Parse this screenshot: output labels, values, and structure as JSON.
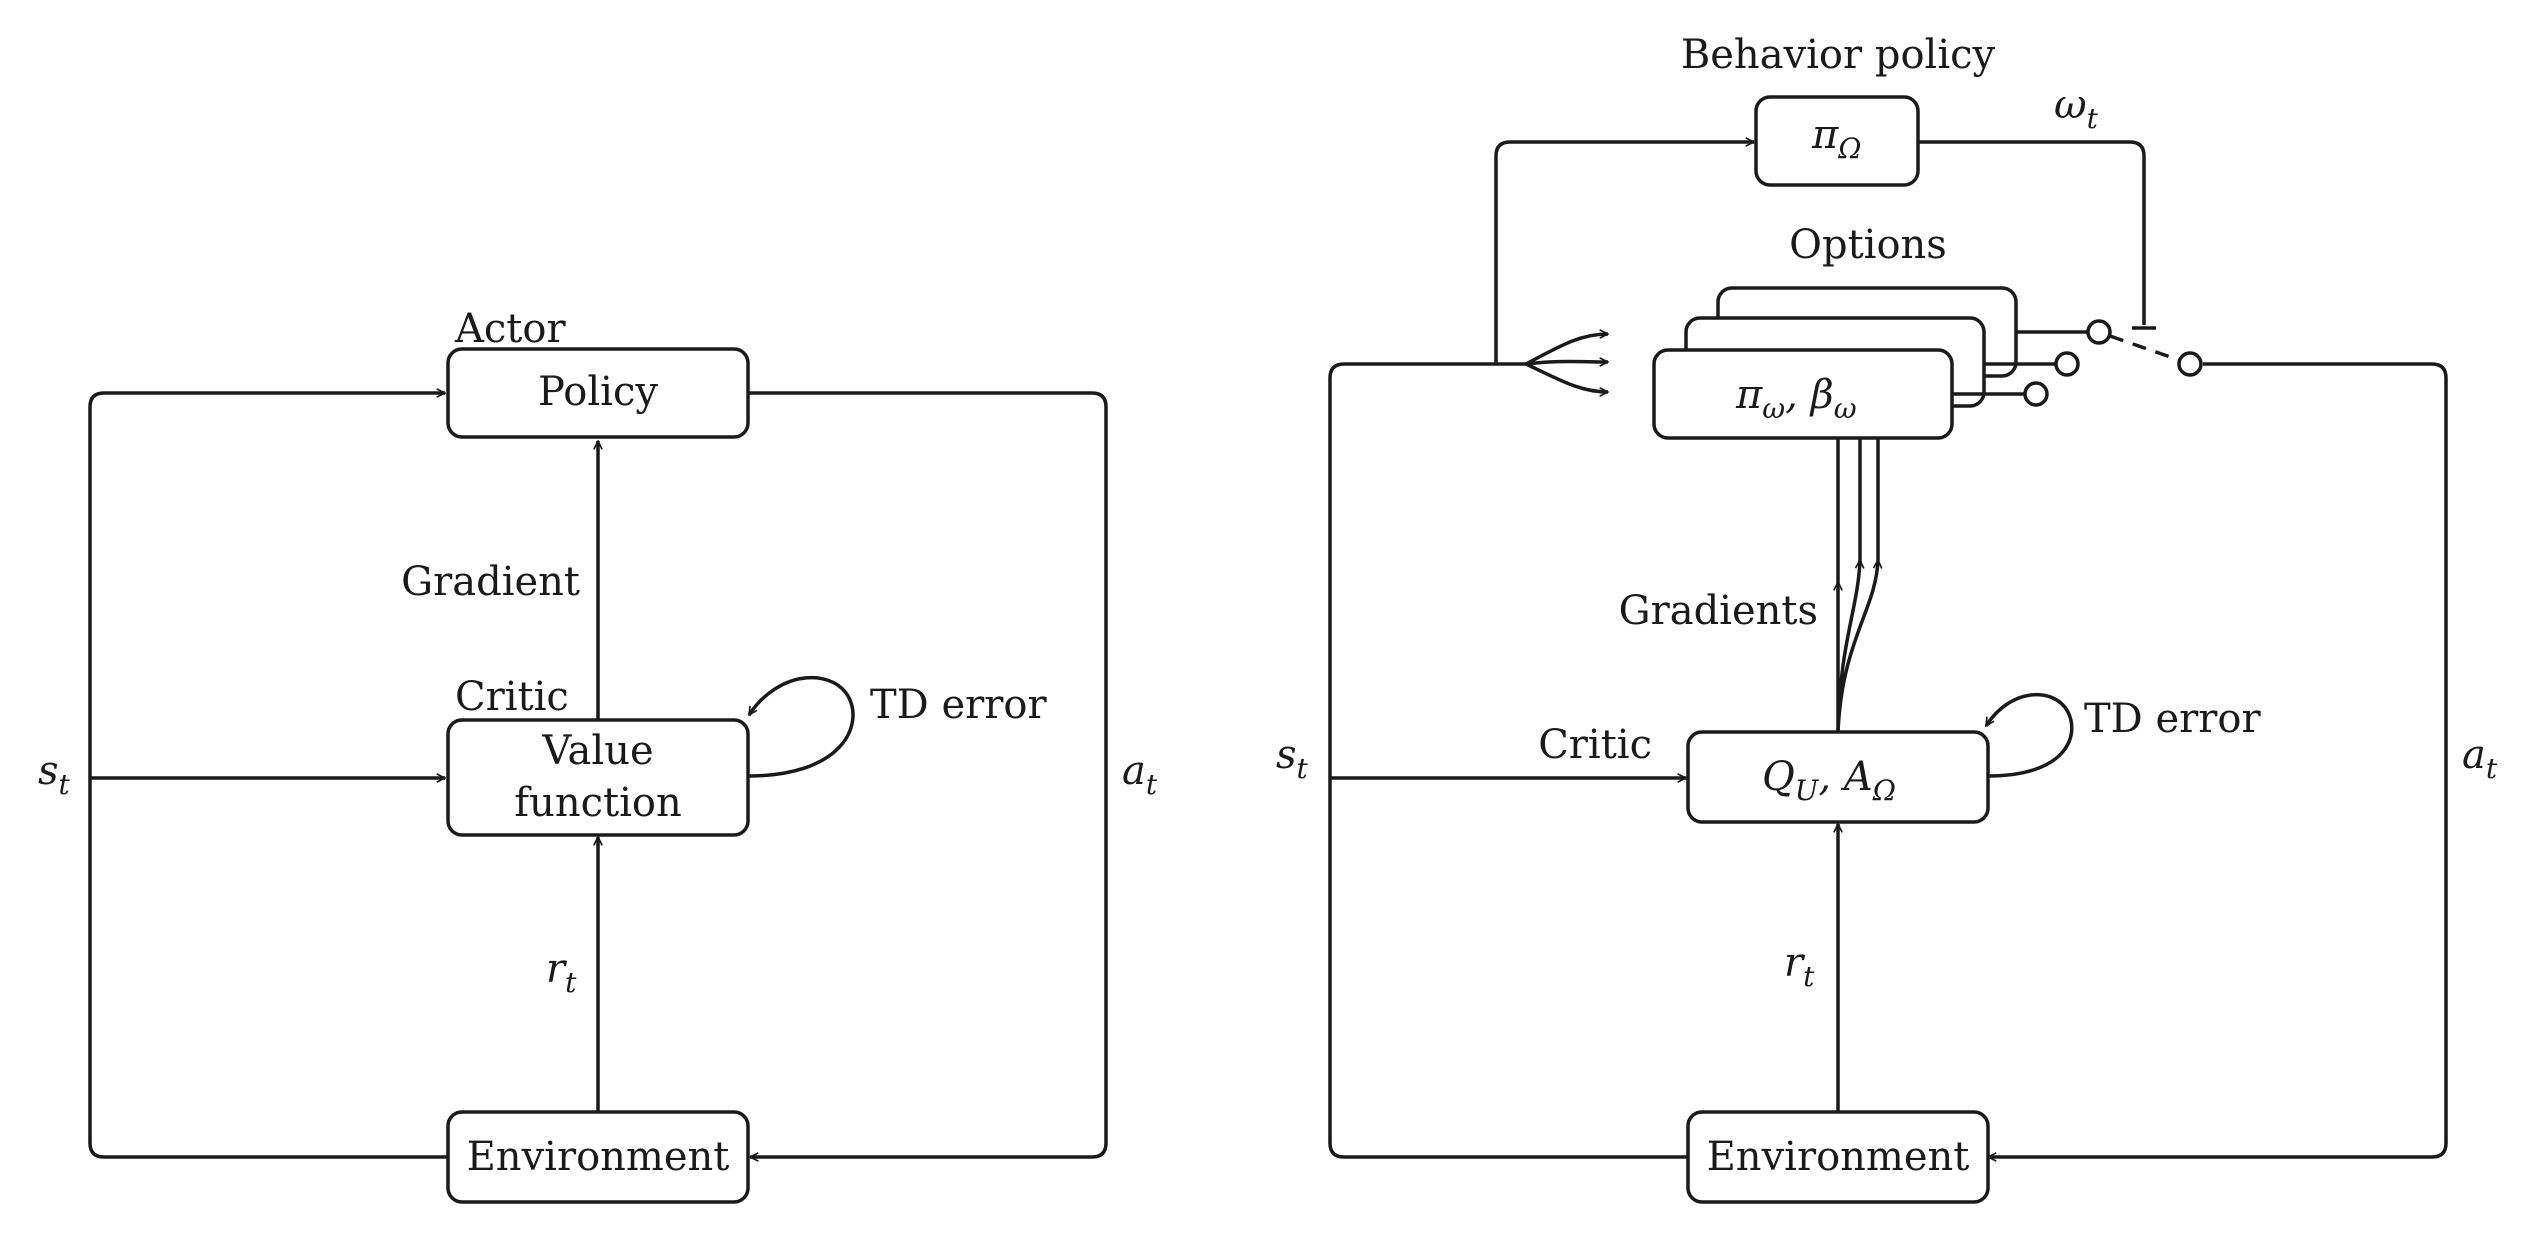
{
  "left": {
    "actor_label": "Actor",
    "policy_label": "Policy",
    "critic_label": "Critic",
    "value_line1": "Value",
    "value_line2": "function",
    "environment_label": "Environment",
    "gradient_label": "Gradient",
    "td_error_label": "TD error",
    "state": {
      "base": "s",
      "sub": "t"
    },
    "action": {
      "base": "a",
      "sub": "t"
    },
    "reward": {
      "base": "r",
      "sub": "t"
    }
  },
  "right": {
    "behavior_policy_label": "Behavior policy",
    "pi_omega_cap": {
      "base": "π",
      "sub": "Ω"
    },
    "omega_t": {
      "base": "ω",
      "sub": "t"
    },
    "options_label": "Options",
    "option_pi": {
      "base": "π",
      "sub": "ω"
    },
    "option_beta": {
      "base": "β",
      "sub": "ω"
    },
    "gradients_label": "Gradients",
    "critic_label": "Critic",
    "q_value": {
      "base": "Q",
      "sub": "U"
    },
    "advantage": {
      "base": "A",
      "sub": "Ω"
    },
    "td_error_label": "TD error",
    "environment_label": "Environment",
    "state": {
      "base": "s",
      "sub": "t"
    },
    "action": {
      "base": "a",
      "sub": "t"
    },
    "reward": {
      "base": "r",
      "sub": "t"
    }
  },
  "colors": {
    "ink": "#1a1a1a",
    "background": "#ffffff"
  }
}
